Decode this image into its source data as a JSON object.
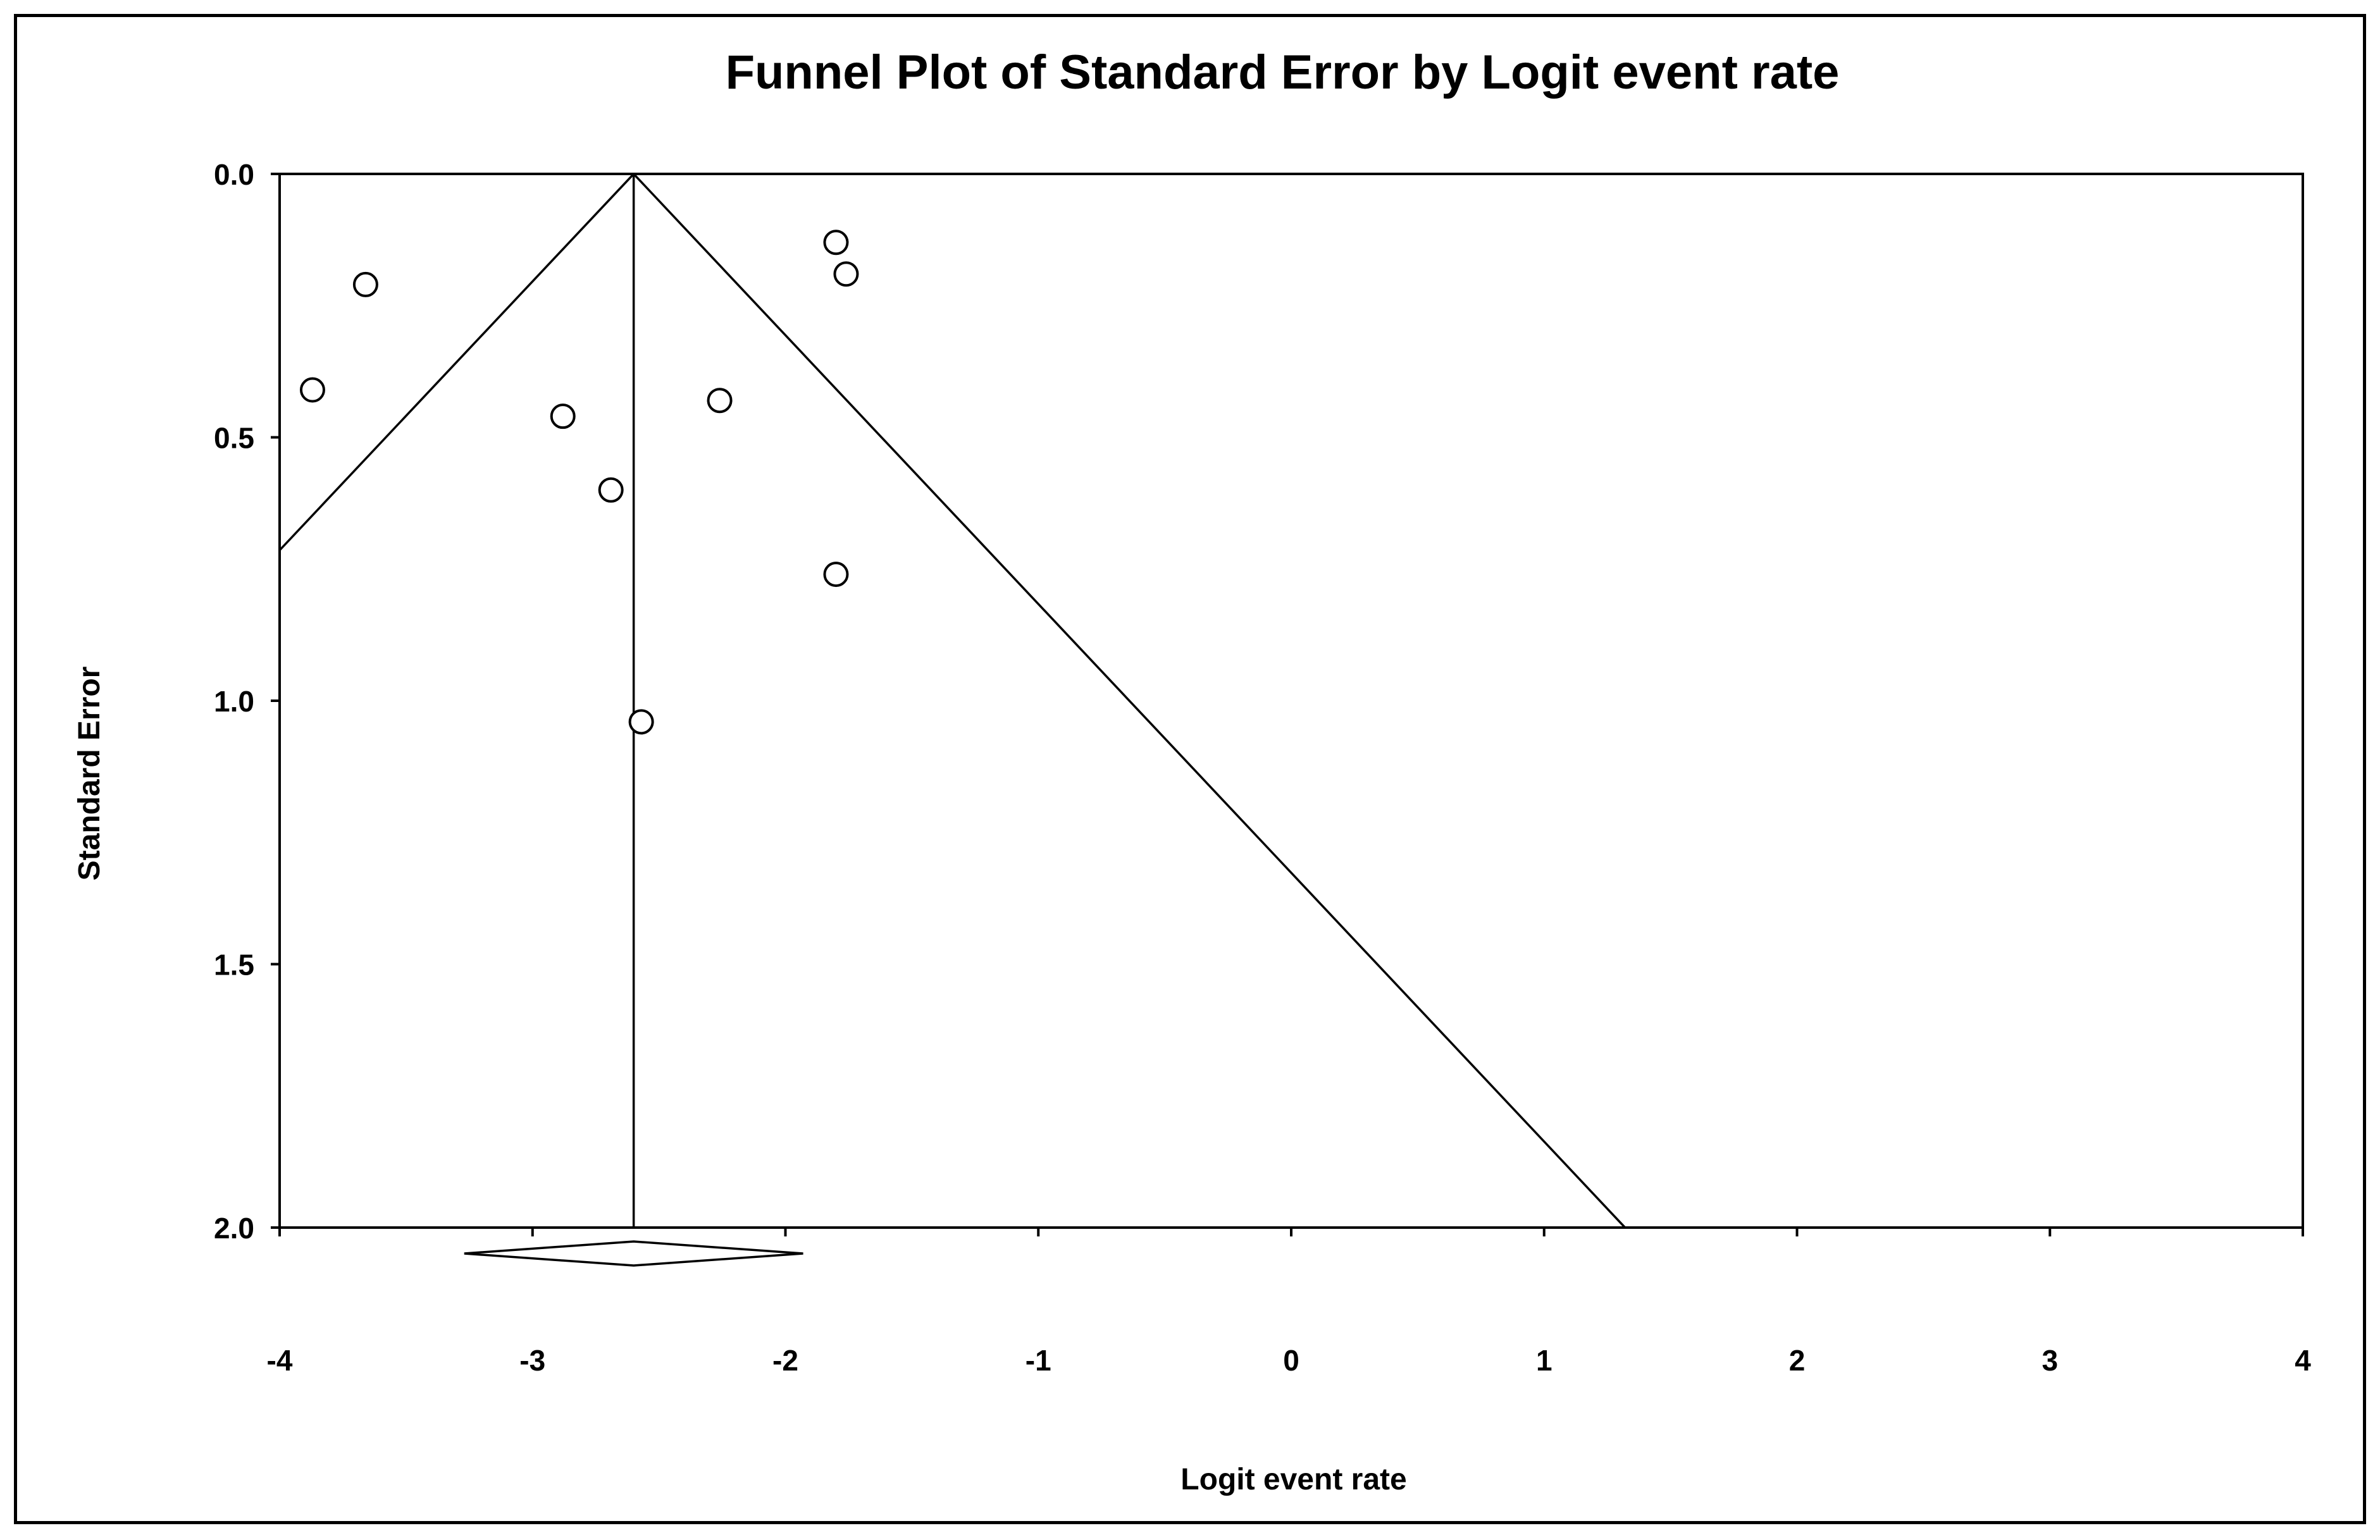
{
  "chart_data": {
    "type": "scatter",
    "title": "Funnel Plot of Standard Error by Logit event rate",
    "xlabel": "Logit event rate",
    "ylabel": "Standard Error",
    "xlim": [
      -4,
      4
    ],
    "ylim": [
      0.0,
      2.0
    ],
    "y_reversed": true,
    "x_ticks": [
      "-4",
      "-3",
      "-2",
      "-1",
      "0",
      "1",
      "2",
      "3",
      "4"
    ],
    "y_ticks": [
      "0.0",
      "0.5",
      "1.0",
      "1.5",
      "2.0"
    ],
    "grid": false,
    "points": [
      {
        "x": -3.87,
        "y": 0.41
      },
      {
        "x": -3.66,
        "y": 0.21
      },
      {
        "x": -2.88,
        "y": 0.46
      },
      {
        "x": -2.69,
        "y": 0.6
      },
      {
        "x": -2.26,
        "y": 0.43
      },
      {
        "x": -1.8,
        "y": 0.13
      },
      {
        "x": -1.76,
        "y": 0.19
      },
      {
        "x": -1.8,
        "y": 0.76
      },
      {
        "x": -2.57,
        "y": 1.04
      }
    ],
    "pooled_estimate": -2.6,
    "funnel_limits": {
      "left_slope": -1.96,
      "right_slope": 1.96
    },
    "summary_diamond": {
      "center": -2.6,
      "lower": -3.27,
      "upper": -1.93
    }
  }
}
